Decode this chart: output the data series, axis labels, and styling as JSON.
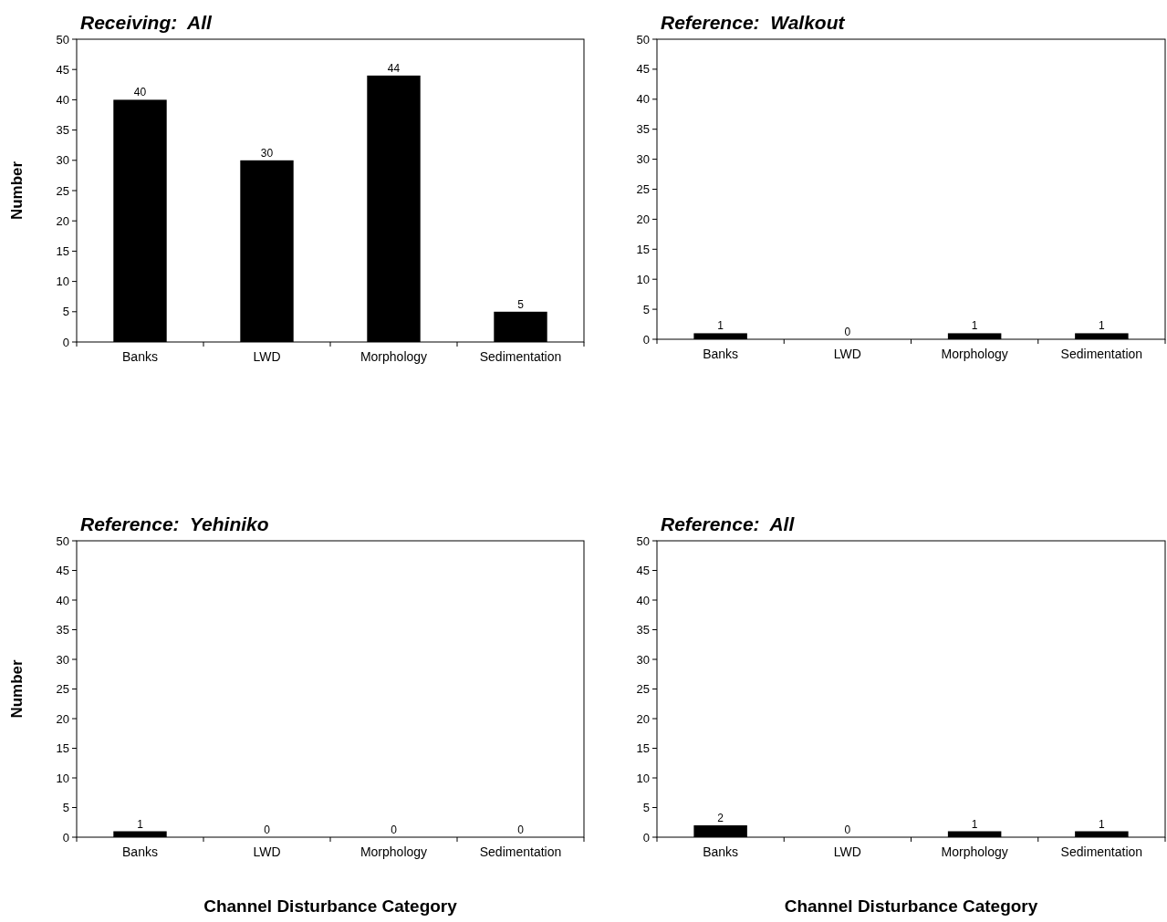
{
  "chart_data": [
    {
      "type": "bar",
      "title": "Receiving:  All",
      "ylabel": "Number",
      "categories": [
        "Banks",
        "LWD",
        "Morphology",
        "Sedimentation"
      ],
      "values": [
        40,
        30,
        44,
        5
      ],
      "color": "#000000",
      "ylim": [
        0,
        50
      ],
      "yticks": [
        0,
        5,
        10,
        15,
        20,
        25,
        30,
        35,
        40,
        45,
        50
      ],
      "data_labels": true,
      "grid": false
    },
    {
      "type": "bar",
      "title": "Reference:  Walkout",
      "categories": [
        "Banks",
        "LWD",
        "Morphology",
        "Sedimentation"
      ],
      "values": [
        1,
        0,
        1,
        1
      ],
      "color": "#000000",
      "ylim": [
        0,
        50
      ],
      "yticks": [
        0,
        5,
        10,
        15,
        20,
        25,
        30,
        35,
        40,
        45,
        50
      ],
      "data_labels": true,
      "grid": false
    },
    {
      "type": "bar",
      "title": "Reference:  Yehiniko",
      "ylabel": "Number",
      "xlabel": "Channel Disturbance Category",
      "categories": [
        "Banks",
        "LWD",
        "Morphology",
        "Sedimentation"
      ],
      "values": [
        1,
        0,
        0,
        0
      ],
      "color": "#000000",
      "ylim": [
        0,
        50
      ],
      "yticks": [
        0,
        5,
        10,
        15,
        20,
        25,
        30,
        35,
        40,
        45,
        50
      ],
      "data_labels": true,
      "grid": false
    },
    {
      "type": "bar",
      "title": "Reference:  All",
      "xlabel": "Channel Disturbance Category",
      "categories": [
        "Banks",
        "LWD",
        "Morphology",
        "Sedimentation"
      ],
      "values": [
        2,
        0,
        1,
        1
      ],
      "color": "#000000",
      "ylim": [
        0,
        50
      ],
      "yticks": [
        0,
        5,
        10,
        15,
        20,
        25,
        30,
        35,
        40,
        45,
        50
      ],
      "data_labels": true,
      "grid": false
    }
  ]
}
